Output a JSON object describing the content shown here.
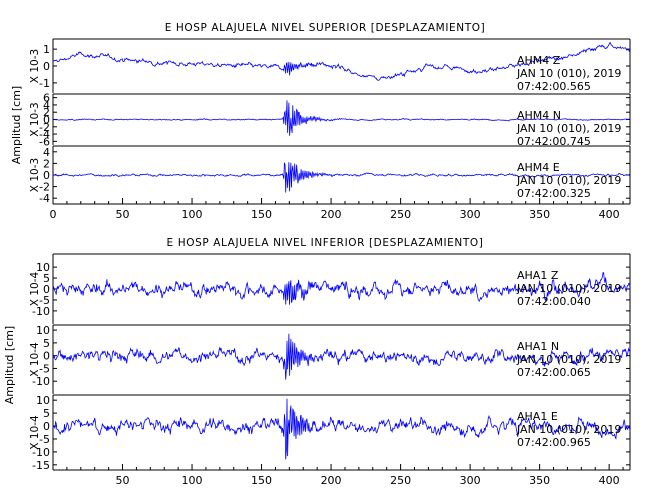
{
  "chart_data": [
    {
      "type": "line",
      "title": "E HOSP ALAJUELA NIVEL SUPERIOR [DESPLAZAMIENTO]",
      "ylabel": "Amplitud [cm]",
      "xlim": [
        0,
        415
      ],
      "xticks": [
        0,
        50,
        100,
        150,
        200,
        250,
        300,
        350,
        400
      ],
      "series": [
        {
          "ann": [
            "AHM4   Z",
            "JAN 10 (010), 2019",
            "07:42:00.565"
          ],
          "scale": "X 10-3",
          "ylim": [
            -1.6,
            1.6
          ],
          "yticks": [
            -1,
            0,
            1
          ],
          "event_amp": 0.5,
          "trend": [
            [
              0,
              0.2
            ],
            [
              20,
              0.7
            ],
            [
              60,
              0.3
            ],
            [
              110,
              0.1
            ],
            [
              160,
              -0.1
            ],
            [
              200,
              0.1
            ],
            [
              235,
              -0.8
            ],
            [
              270,
              0.0
            ],
            [
              310,
              -0.3
            ],
            [
              340,
              0.1
            ],
            [
              380,
              0.8
            ],
            [
              400,
              1.3
            ],
            [
              415,
              0.9
            ]
          ],
          "noise": 0.22
        },
        {
          "ann": [
            "AHM4   N",
            "JAN 10 (010), 2019",
            "07:42:00.745"
          ],
          "scale": "X 10-3",
          "ylim": [
            -7,
            7
          ],
          "yticks": [
            -6,
            -4,
            -2,
            0,
            2,
            4,
            6
          ],
          "event_amp": 6.0,
          "trend": [
            [
              0,
              0.0
            ],
            [
              415,
              0.0
            ]
          ],
          "noise": 0.25
        },
        {
          "ann": [
            "AHM4   E",
            "JAN 10 (010), 2019",
            "07:42:00.325"
          ],
          "scale": "X 10-3",
          "ylim": [
            -5,
            5
          ],
          "yticks": [
            -4,
            -2,
            0,
            2,
            4
          ],
          "event_amp": 4.0,
          "trend": [
            [
              0,
              0.0
            ],
            [
              415,
              0.0
            ]
          ],
          "noise": 0.3
        }
      ]
    },
    {
      "type": "line",
      "title": "E HOSP ALAJUELA NIVEL INFERIOR [DESPLAZAMIENTO]",
      "ylabel": "Amplitud [cm]",
      "xlim": [
        0,
        415
      ],
      "xticks": [
        50,
        100,
        150,
        200,
        250,
        300,
        350,
        400
      ],
      "series": [
        {
          "ann": [
            "AHA1   Z",
            "JAN 10 (010), 2019",
            "07:42:00.040"
          ],
          "scale": "X 10-4",
          "ylim": [
            -16,
            16
          ],
          "yticks": [
            -10,
            -5,
            0,
            5,
            10
          ],
          "event_amp": 9.0,
          "trend": [
            [
              0,
              0.0
            ],
            [
              415,
              0.0
            ]
          ],
          "noise": 5.0
        },
        {
          "ann": [
            "AHA1   N",
            "JAN 10 (010), 2019",
            "07:42:00.065"
          ],
          "scale": "X 10-4",
          "ylim": [
            -15,
            12
          ],
          "yticks": [
            -10,
            -5,
            0,
            5,
            10
          ],
          "event_amp": 11.0,
          "trend": [
            [
              0,
              0.0
            ],
            [
              415,
              0.0
            ]
          ],
          "noise": 4.0
        },
        {
          "ann": [
            "AHA1   E",
            "JAN 10 (010), 2019",
            "07:42:00.965"
          ],
          "scale": "X 10-4",
          "ylim": [
            -17,
            12
          ],
          "yticks": [
            -15,
            -10,
            -5,
            0,
            5,
            10
          ],
          "event_amp": 13.0,
          "trend": [
            [
              0,
              0.0
            ],
            [
              415,
              0.0
            ]
          ],
          "noise": 4.5
        }
      ]
    }
  ]
}
